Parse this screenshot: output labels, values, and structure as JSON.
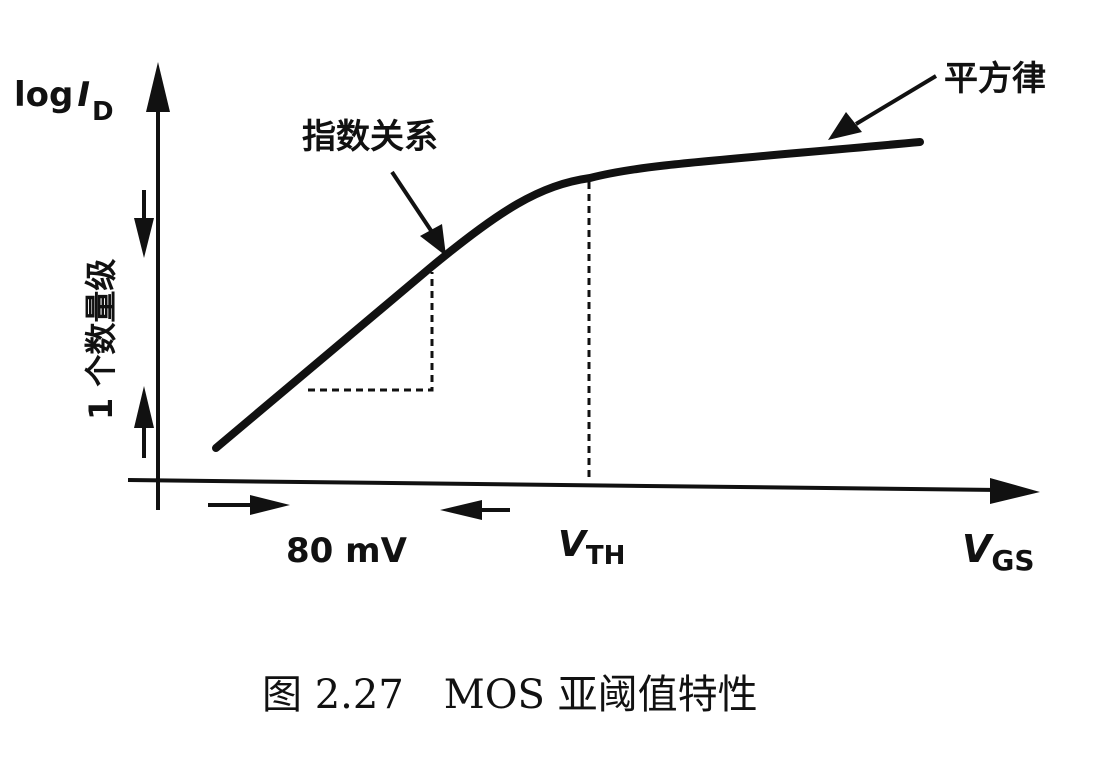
{
  "figure": {
    "y_axis_label_main": "log",
    "y_axis_label_I": "I",
    "y_axis_label_sub": "D",
    "x_axis_label_main": "V",
    "x_axis_label_sub": "GS",
    "vth_label_main": "V",
    "vth_label_sub": "TH",
    "annotation_exponential": "指数关系",
    "annotation_square_law": "平方律",
    "decade_label": "1 个数量级",
    "slope_label": "80 mV",
    "caption": "图 2.27　MOS 亚阈值特性"
  }
}
